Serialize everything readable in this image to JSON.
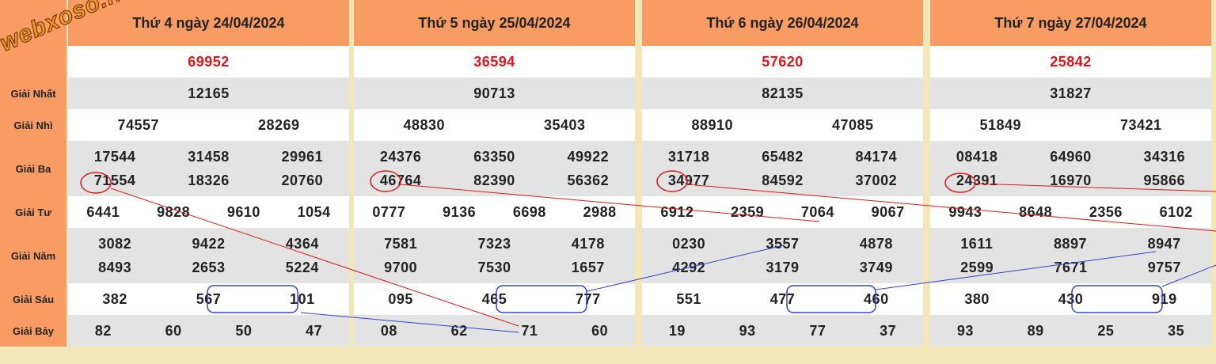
{
  "watermark": "webxoso.net",
  "headers": [
    "Thứ 4 ngày 24/04/2024",
    "Thứ 5 ngày 25/04/2024",
    "Thứ 6 ngày 26/04/2024",
    "Thứ 7 ngày 27/04/2024"
  ],
  "rows": [
    {
      "cells": [
        [
          "69952"
        ],
        [
          "36594"
        ],
        [
          "57620"
        ],
        [
          "25842"
        ]
      ]
    },
    {
      "label": "Giải Nhất",
      "cells": [
        [
          "12165"
        ],
        [
          "90713"
        ],
        [
          "82135"
        ],
        [
          "31827"
        ]
      ]
    },
    {
      "label": "Giải Nhì",
      "cells": [
        [
          "74557",
          "28269"
        ],
        [
          "48830",
          "35403"
        ],
        [
          "88910",
          "47085"
        ],
        [
          "51849",
          "73421"
        ]
      ]
    },
    {
      "label": "Giải Ba",
      "cells": [
        [
          "17544",
          "31458",
          "29961",
          "71554",
          "18326",
          "20760"
        ],
        [
          "24376",
          "63350",
          "49922",
          "46764",
          "82390",
          "56362"
        ],
        [
          "31718",
          "65482",
          "84174",
          "34977",
          "84592",
          "37002"
        ],
        [
          "08418",
          "64960",
          "34316",
          "24391",
          "16970",
          "95866"
        ]
      ]
    },
    {
      "label": "Giải Tư",
      "cells": [
        [
          "6441",
          "9828",
          "9610",
          "1054"
        ],
        [
          "0777",
          "9136",
          "6698",
          "2988"
        ],
        [
          "6912",
          "2359",
          "7064",
          "9067"
        ],
        [
          "9943",
          "8648",
          "2356",
          "6102"
        ]
      ]
    },
    {
      "label": "Giải Năm",
      "cells": [
        [
          "3082",
          "9422",
          "4364",
          "8493",
          "2653",
          "5224"
        ],
        [
          "7581",
          "7323",
          "4178",
          "9700",
          "7530",
          "1657"
        ],
        [
          "0230",
          "3557",
          "4878",
          "4292",
          "3179",
          "3749"
        ],
        [
          "1611",
          "8897",
          "8947",
          "2599",
          "7671",
          "9757"
        ]
      ]
    },
    {
      "label": "Giải Sáu",
      "cells": [
        [
          "382",
          "567",
          "101"
        ],
        [
          "095",
          "465",
          "777"
        ],
        [
          "551",
          "477",
          "460"
        ],
        [
          "380",
          "430",
          "919"
        ]
      ]
    },
    {
      "label": "Giải Bảy",
      "cells": [
        [
          "82",
          "60",
          "50",
          "47"
        ],
        [
          "08",
          "62",
          "71",
          "60"
        ],
        [
          "19",
          "93",
          "77",
          "37"
        ],
        [
          "93",
          "89",
          "25",
          "35"
        ]
      ]
    }
  ]
}
